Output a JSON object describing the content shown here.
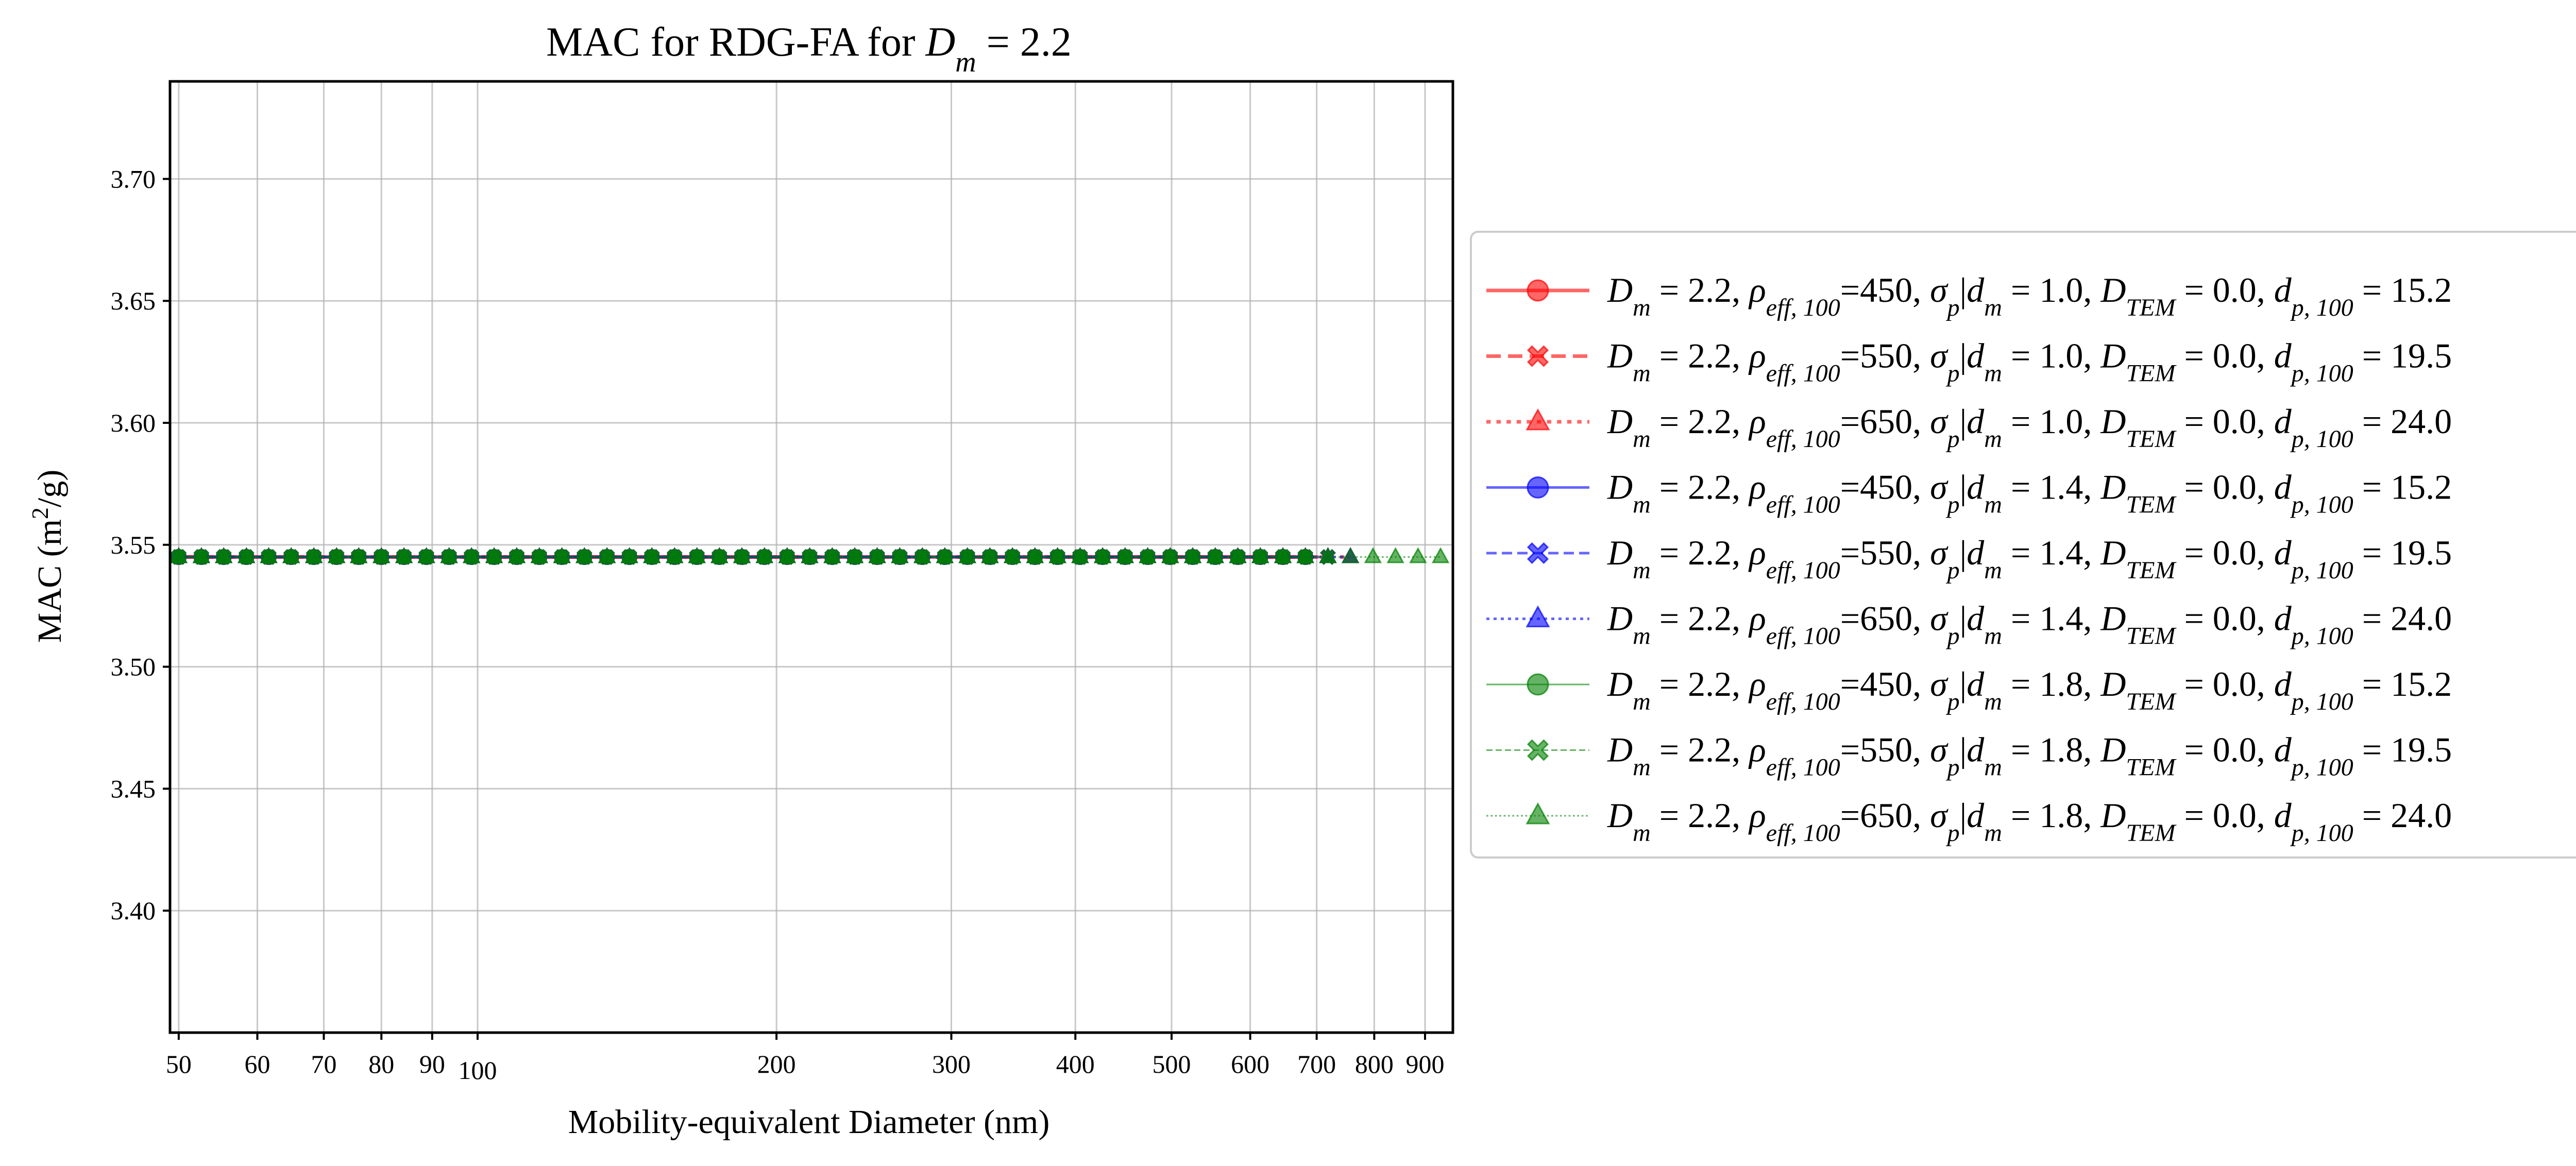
{
  "chart_data": {
    "type": "line",
    "title": {
      "pre": "MAC for RDG-FA for ",
      "var": "D",
      "sub": "m",
      "post": " = 2.2"
    },
    "xlabel": "Mobility-equivalent Diameter (nm)",
    "ylabel": {
      "pre": "MAC (m",
      "sup": "2",
      "post": "/g)"
    },
    "xscale": "log",
    "xlim": [
      49,
      960
    ],
    "ylim": [
      3.35,
      3.74
    ],
    "grid": true,
    "legend_position": "outside-right",
    "x_ticks": [
      {
        "value": 50,
        "label": "50"
      },
      {
        "value": 60,
        "label": "60"
      },
      {
        "value": 70,
        "label": "70"
      },
      {
        "value": 80,
        "label": "80"
      },
      {
        "value": 90,
        "label": "90"
      },
      {
        "value": 100,
        "label": "100"
      },
      {
        "value": 200,
        "label": "200"
      },
      {
        "value": 300,
        "label": "300"
      },
      {
        "value": 400,
        "label": "400"
      },
      {
        "value": 500,
        "label": "500"
      },
      {
        "value": 600,
        "label": "600"
      },
      {
        "value": 700,
        "label": "700"
      },
      {
        "value": 800,
        "label": "800"
      },
      {
        "value": 900,
        "label": "900"
      }
    ],
    "y_ticks": [
      {
        "value": 3.4,
        "label": "3.40"
      },
      {
        "value": 3.45,
        "label": "3.45"
      },
      {
        "value": 3.5,
        "label": "3.50"
      },
      {
        "value": 3.55,
        "label": "3.55"
      },
      {
        "value": 3.6,
        "label": "3.60"
      },
      {
        "value": 3.65,
        "label": "3.65"
      },
      {
        "value": 3.7,
        "label": "3.70"
      }
    ],
    "x": [
      50,
      52.7,
      55.5,
      58.5,
      61.6,
      64.9,
      68.4,
      72.1,
      75.9,
      80,
      84.3,
      88.8,
      93.6,
      98.6,
      103.9,
      109.5,
      115.4,
      121.6,
      128.1,
      135,
      142.2,
      149.8,
      157.9,
      166.3,
      175.2,
      184.6,
      194.5,
      205,
      216,
      227.6,
      239.8,
      252.6,
      266.2,
      280.5,
      295.5,
      311.4,
      328.1,
      345.7,
      364.2,
      383.8,
      404.4,
      426.1,
      448.9,
      473,
      498.4,
      525.1,
      553.3,
      583,
      614.3,
      647.2,
      681.9,
      718.5,
      757,
      797.6,
      840.4,
      885.5,
      933
    ],
    "series": [
      {
        "name": "D_m=2.2, rho_eff,100=450, sigma_p|d_m=1.0, D_TEM=0.0, d_p,100=15.2",
        "legend": {
          "dm": "2.2",
          "rho": "450",
          "sigma": "1.0",
          "dtem": "0.0",
          "dp": "15.2"
        },
        "color": "#ff0000",
        "linestyle": "solid",
        "linewidth": 7,
        "marker": "circle",
        "y_const": 3.545,
        "x_max": 700
      },
      {
        "name": "D_m=2.2, rho_eff,100=550, sigma_p|d_m=1.0, D_TEM=0.0, d_p,100=19.5",
        "legend": {
          "dm": "2.2",
          "rho": "550",
          "sigma": "1.0",
          "dtem": "0.0",
          "dp": "19.5"
        },
        "color": "#ff0000",
        "linestyle": "dashed",
        "linewidth": 7,
        "marker": "x",
        "y_const": 3.545,
        "x_max": 720
      },
      {
        "name": "D_m=2.2, rho_eff,100=650, sigma_p|d_m=1.0, D_TEM=0.0, d_p,100=24.0",
        "legend": {
          "dm": "2.2",
          "rho": "650",
          "sigma": "1.0",
          "dtem": "0.0",
          "dp": "24.0"
        },
        "color": "#ff0000",
        "linestyle": "dotted",
        "linewidth": 7,
        "marker": "triangle",
        "y_const": 3.545,
        "x_max": 760
      },
      {
        "name": "D_m=2.2, rho_eff,100=450, sigma_p|d_m=1.4, D_TEM=0.0, d_p,100=15.2",
        "legend": {
          "dm": "2.2",
          "rho": "450",
          "sigma": "1.4",
          "dtem": "0.0",
          "dp": "15.2"
        },
        "color": "#0000ff",
        "linestyle": "solid",
        "linewidth": 5,
        "marker": "circle",
        "y_const": 3.545,
        "x_max": 700
      },
      {
        "name": "D_m=2.2, rho_eff,100=550, sigma_p|d_m=1.4, D_TEM=0.0, d_p,100=19.5",
        "legend": {
          "dm": "2.2",
          "rho": "550",
          "sigma": "1.4",
          "dtem": "0.0",
          "dp": "19.5"
        },
        "color": "#0000ff",
        "linestyle": "dashed",
        "linewidth": 5,
        "marker": "x",
        "y_const": 3.545,
        "x_max": 720
      },
      {
        "name": "D_m=2.2, rho_eff,100=650, sigma_p|d_m=1.4, D_TEM=0.0, d_p,100=24.0",
        "legend": {
          "dm": "2.2",
          "rho": "650",
          "sigma": "1.4",
          "dtem": "0.0",
          "dp": "24.0"
        },
        "color": "#0000ff",
        "linestyle": "dotted",
        "linewidth": 5,
        "marker": "triangle",
        "y_const": 3.545,
        "x_max": 790
      },
      {
        "name": "D_m=2.2, rho_eff,100=450, sigma_p|d_m=1.8, D_TEM=0.0, d_p,100=15.2",
        "legend": {
          "dm": "2.2",
          "rho": "450",
          "sigma": "1.8",
          "dtem": "0.0",
          "dp": "15.2"
        },
        "color": "#008000",
        "linestyle": "solid",
        "linewidth": 3,
        "marker": "circle",
        "y_const": 3.545,
        "x_max": 700
      },
      {
        "name": "D_m=2.2, rho_eff,100=550, sigma_p|d_m=1.8, D_TEM=0.0, d_p,100=19.5",
        "legend": {
          "dm": "2.2",
          "rho": "550",
          "sigma": "1.8",
          "dtem": "0.0",
          "dp": "19.5"
        },
        "color": "#008000",
        "linestyle": "dashed",
        "linewidth": 3,
        "marker": "x",
        "y_const": 3.545,
        "x_max": 720
      },
      {
        "name": "D_m=2.2, rho_eff,100=650, sigma_p|d_m=1.8, D_TEM=0.0, d_p,100=24.0",
        "legend": {
          "dm": "2.2",
          "rho": "650",
          "sigma": "1.8",
          "dtem": "0.0",
          "dp": "24.0"
        },
        "color": "#008000",
        "linestyle": "dotted",
        "linewidth": 3,
        "marker": "triangle",
        "y_const": 3.545,
        "x_max": 960
      }
    ]
  }
}
